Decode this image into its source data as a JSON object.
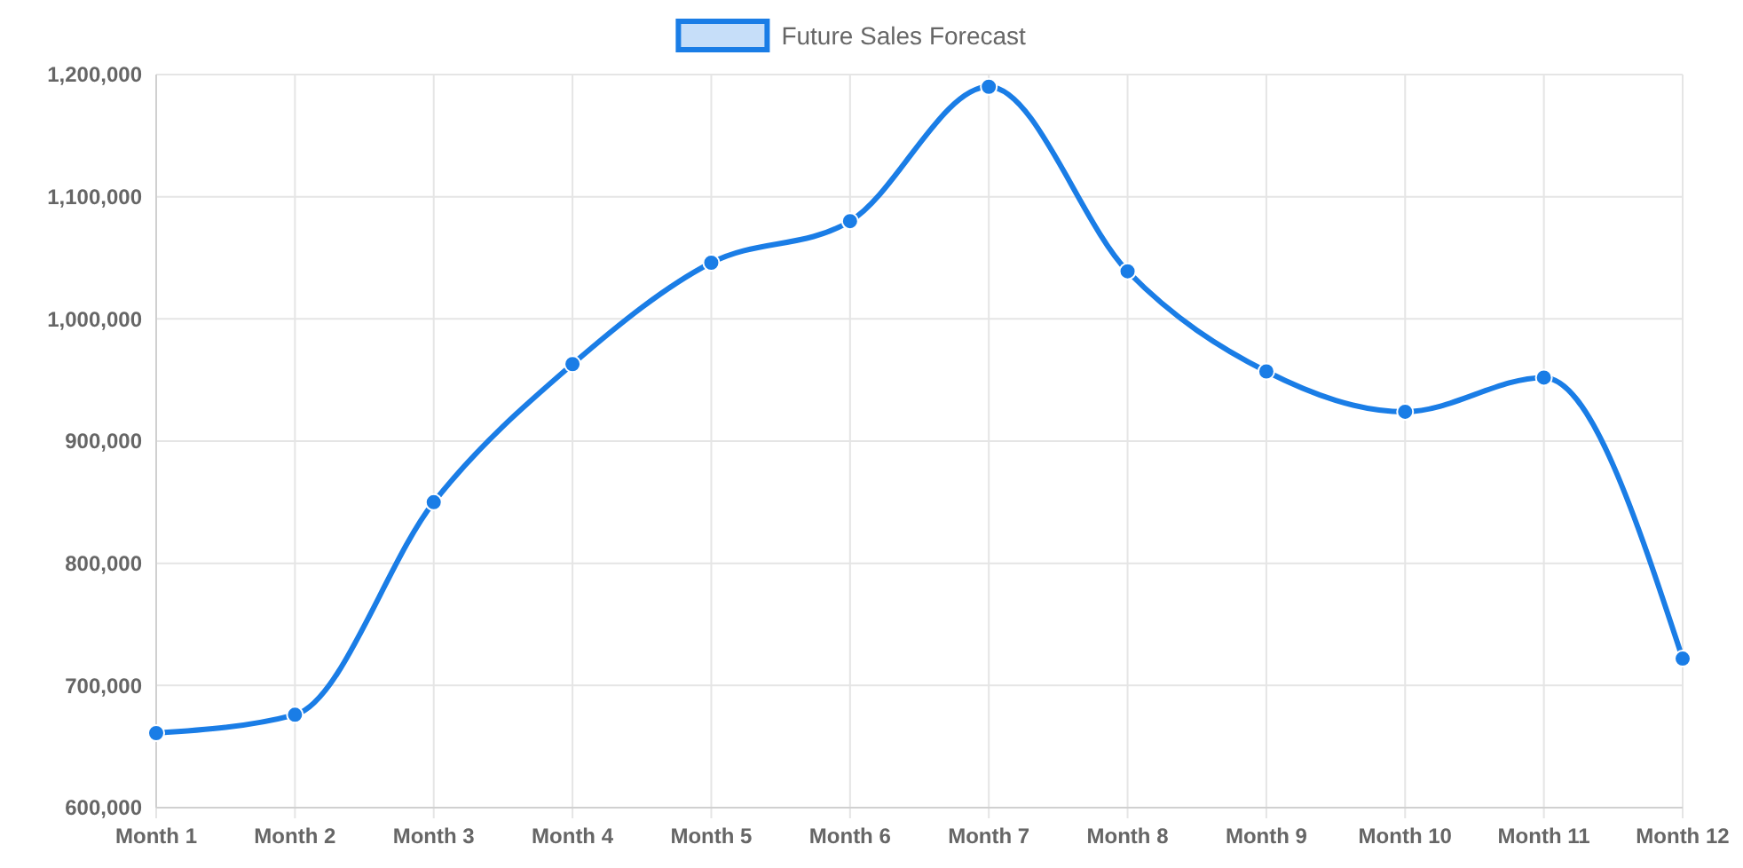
{
  "chart_data": {
    "type": "line",
    "categories": [
      "Month 1",
      "Month 2",
      "Month 3",
      "Month 4",
      "Month 5",
      "Month 6",
      "Month 7",
      "Month 8",
      "Month 9",
      "Month 10",
      "Month 11",
      "Month 12"
    ],
    "series": [
      {
        "name": "Future Sales Forecast",
        "color": "#1a7de6",
        "values": [
          661000,
          676000,
          850000,
          963000,
          1046000,
          1080000,
          1190000,
          1039000,
          957000,
          924000,
          952000,
          722000
        ]
      }
    ],
    "ylim": [
      600000,
      1200000
    ],
    "yticks": [
      {
        "value": 600000,
        "label": "600,000"
      },
      {
        "value": 700000,
        "label": "700,000"
      },
      {
        "value": 800000,
        "label": "800,000"
      },
      {
        "value": 900000,
        "label": "900,000"
      },
      {
        "value": 1000000,
        "label": "1,000,000"
      },
      {
        "value": 1100000,
        "label": "1,100,000"
      },
      {
        "value": 1200000,
        "label": "1,200,000"
      }
    ],
    "grid": true,
    "legend": "top",
    "marker": "circle",
    "line_style": "solid"
  }
}
